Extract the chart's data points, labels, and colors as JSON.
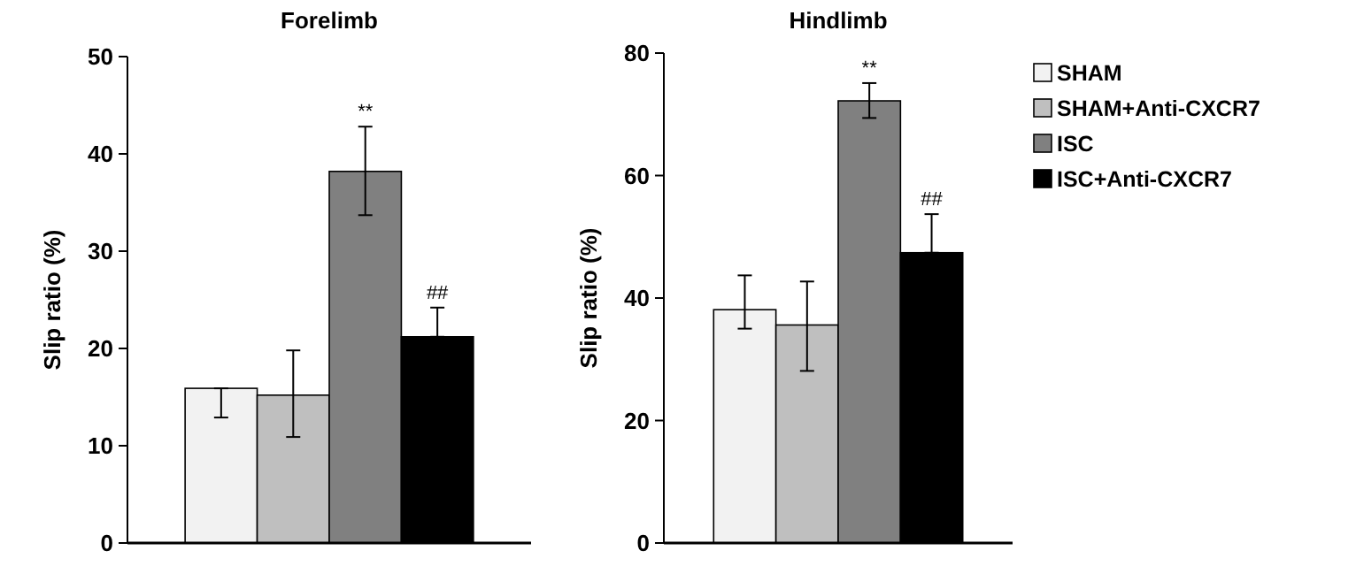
{
  "chart_data": [
    {
      "type": "bar",
      "title": "Forelimb",
      "ylabel": "Slip ratio (%)",
      "categories": [
        null
      ],
      "ylim": [
        0,
        50
      ],
      "yticks": [
        0,
        10,
        20,
        30,
        40,
        50
      ],
      "grid": false,
      "legend": false,
      "series": [
        {
          "color": "#f2f2f2",
          "values": [
            15.9
          ],
          "errors": [
            [
              12.9,
              15.9
            ]
          ]
        },
        {
          "color": "#bfbfbf",
          "values": [
            15.2
          ],
          "errors": [
            [
              10.9,
              19.8
            ]
          ]
        },
        {
          "color": "#808080",
          "values": [
            38.2
          ],
          "errors": [
            [
              33.7,
              42.8
            ]
          ],
          "value_labels": [
            "**"
          ]
        },
        {
          "color": "#000000",
          "values": [
            21.2
          ],
          "errors": [
            [
              21.2,
              24.2
            ]
          ],
          "value_labels": [
            "##"
          ]
        }
      ]
    },
    {
      "type": "bar",
      "title": "Hindlimb",
      "ylabel": "Slip ratio (%)",
      "categories": [
        null
      ],
      "ylim": [
        0,
        80
      ],
      "yticks": [
        0,
        20,
        40,
        60,
        80
      ],
      "grid": false,
      "legend": "right",
      "series": [
        {
          "name": "SHAM",
          "color": "#f2f2f2",
          "values": [
            38.1
          ],
          "errors": [
            [
              35.0,
              43.7
            ]
          ]
        },
        {
          "name": "SHAM+Anti-CXCR7",
          "color": "#bfbfbf",
          "values": [
            35.6
          ],
          "errors": [
            [
              28.1,
              42.7
            ]
          ]
        },
        {
          "name": "ISC",
          "color": "#808080",
          "values": [
            72.2
          ],
          "errors": [
            [
              69.4,
              75.1
            ]
          ],
          "value_labels": [
            "**"
          ]
        },
        {
          "name": "ISC+Anti-CXCR7",
          "color": "#000000",
          "values": [
            47.4
          ],
          "errors": [
            [
              47.4,
              53.7
            ]
          ],
          "value_labels": [
            "##"
          ]
        }
      ]
    }
  ]
}
